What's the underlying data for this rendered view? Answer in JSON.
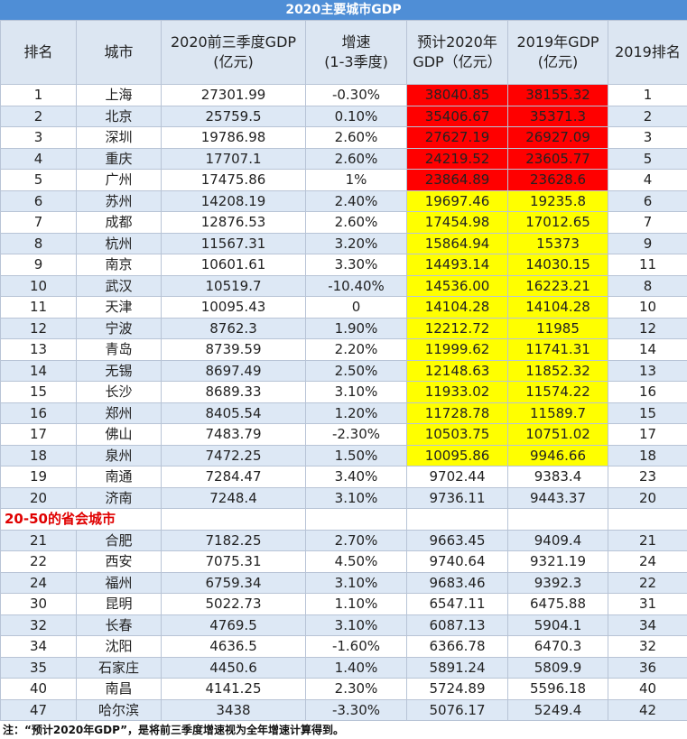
{
  "title": "2020主要城市GDP",
  "table": {
    "header": [
      "排名",
      "城市",
      "2020前三季度GDP\n(亿元)",
      "增速\n(1-3季度)",
      "预计2020年\nGDP（亿元）",
      "2019年GDP\n(亿元)",
      "2019排名"
    ],
    "rows": [
      {
        "cells": [
          "1",
          "上海",
          "27301.99",
          "-0.30%",
          "38040.85",
          "38155.32",
          "1"
        ],
        "highlight": "#ff0000"
      },
      {
        "cells": [
          "2",
          "北京",
          "25759.5",
          "0.10%",
          "35406.67",
          "35371.3",
          "2"
        ],
        "highlight": "#ff0000"
      },
      {
        "cells": [
          "3",
          "深圳",
          "19786.98",
          "2.60%",
          "27627.19",
          "26927.09",
          "3"
        ],
        "highlight": "#ff0000"
      },
      {
        "cells": [
          "4",
          "重庆",
          "17707.1",
          "2.60%",
          "24219.52",
          "23605.77",
          "5"
        ],
        "highlight": "#ff0000"
      },
      {
        "cells": [
          "5",
          "广州",
          "17475.86",
          "1%",
          "23864.89",
          "23628.6",
          "4"
        ],
        "highlight": "#ff0000"
      },
      {
        "cells": [
          "6",
          "苏州",
          "14208.19",
          "2.40%",
          "19697.46",
          "19235.8",
          "6"
        ],
        "highlight": "#ffff00"
      },
      {
        "cells": [
          "7",
          "成都",
          "12876.53",
          "2.60%",
          "17454.98",
          "17012.65",
          "7"
        ],
        "highlight": "#ffff00"
      },
      {
        "cells": [
          "8",
          "杭州",
          "11567.31",
          "3.20%",
          "15864.94",
          "15373",
          "9"
        ],
        "highlight": "#ffff00"
      },
      {
        "cells": [
          "9",
          "南京",
          "10601.61",
          "3.30%",
          "14493.14",
          "14030.15",
          "11"
        ],
        "highlight": "#ffff00"
      },
      {
        "cells": [
          "10",
          "武汉",
          "10519.7",
          "-10.40%",
          "14536.00",
          "16223.21",
          "8"
        ],
        "highlight": "#ffff00"
      },
      {
        "cells": [
          "11",
          "天津",
          "10095.43",
          "0",
          "14104.28",
          "14104.28",
          "10"
        ],
        "highlight": "#ffff00"
      },
      {
        "cells": [
          "12",
          "宁波",
          "8762.3",
          "1.90%",
          "12212.72",
          "11985",
          "12"
        ],
        "highlight": "#ffff00"
      },
      {
        "cells": [
          "13",
          "青岛",
          "8739.59",
          "2.20%",
          "11999.62",
          "11741.31",
          "14"
        ],
        "highlight": "#ffff00"
      },
      {
        "cells": [
          "14",
          "无锡",
          "8697.49",
          "2.50%",
          "12148.63",
          "11852.32",
          "13"
        ],
        "highlight": "#ffff00"
      },
      {
        "cells": [
          "15",
          "长沙",
          "8689.33",
          "3.10%",
          "11933.02",
          "11574.22",
          "16"
        ],
        "highlight": "#ffff00"
      },
      {
        "cells": [
          "16",
          "郑州",
          "8405.54",
          "1.20%",
          "11728.78",
          "11589.7",
          "15"
        ],
        "highlight": "#ffff00"
      },
      {
        "cells": [
          "17",
          "佛山",
          "7483.79",
          "-2.30%",
          "10503.75",
          "10751.02",
          "17"
        ],
        "highlight": "#ffff00"
      },
      {
        "cells": [
          "18",
          "泉州",
          "7472.25",
          "1.50%",
          "10095.86",
          "9946.66",
          "18"
        ],
        "highlight": "#ffff00"
      },
      {
        "cells": [
          "19",
          "南通",
          "7284.47",
          "3.40%",
          "9702.44",
          "9383.4",
          "23"
        ]
      },
      {
        "cells": [
          "20",
          "济南",
          "7248.4",
          "3.10%",
          "9736.11",
          "9443.37",
          "20"
        ]
      }
    ],
    "section": "20-50的省会城市",
    "section_rows": [
      {
        "cells": [
          "21",
          "合肥",
          "7182.25",
          "2.70%",
          "9663.45",
          "9409.4",
          "21"
        ]
      },
      {
        "cells": [
          "22",
          "西安",
          "7075.31",
          "4.50%",
          "9740.64",
          "9321.19",
          "24"
        ]
      },
      {
        "cells": [
          "24",
          "福州",
          "6759.34",
          "3.10%",
          "9683.46",
          "9392.3",
          "22"
        ]
      },
      {
        "cells": [
          "30",
          "昆明",
          "5022.73",
          "1.10%",
          "6547.11",
          "6475.88",
          "31"
        ]
      },
      {
        "cells": [
          "32",
          "长春",
          "4769.5",
          "3.10%",
          "6087.13",
          "5904.1",
          "34"
        ]
      },
      {
        "cells": [
          "34",
          "沈阳",
          "4636.5",
          "-1.60%",
          "6366.78",
          "6470.3",
          "32"
        ]
      },
      {
        "cells": [
          "35",
          "石家庄",
          "4450.6",
          "1.40%",
          "5891.24",
          "5809.9",
          "36"
        ]
      },
      {
        "cells": [
          "40",
          "南昌",
          "4141.25",
          "2.30%",
          "5724.89",
          "5596.18",
          "40"
        ]
      },
      {
        "cells": [
          "47",
          "哈尔滨",
          "3438",
          "-3.30%",
          "5076.17",
          "5249.4",
          "42"
        ]
      }
    ]
  },
  "note": "注：“预计2020年GDP”，是将前三季度增速视为全年增速计算得到。"
}
